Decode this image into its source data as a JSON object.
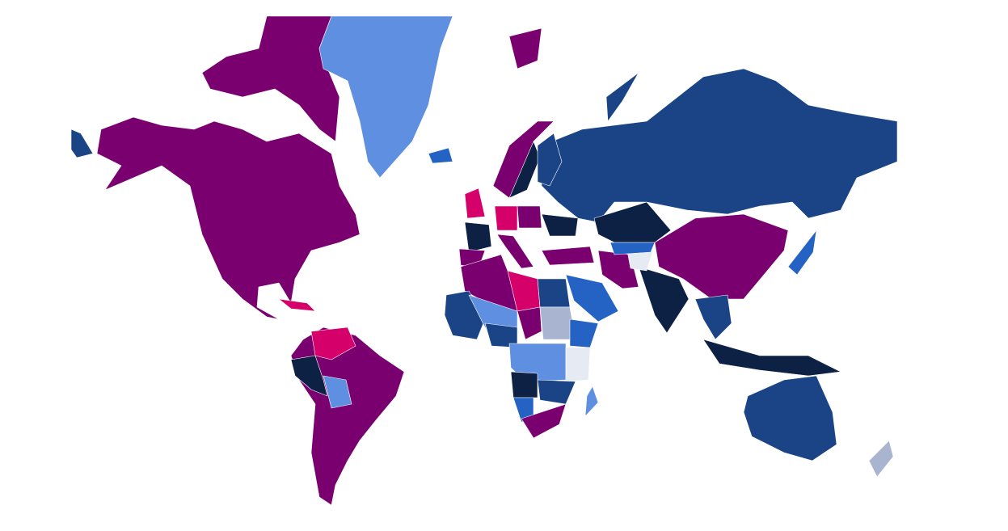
{
  "map": {
    "type": "choropleth-world",
    "palette": {
      "purple": "#7a0070",
      "magenta": "#d6006a",
      "navy": "#0d2145",
      "darkblue": "#1a4486",
      "blue": "#2462c4",
      "lightblue": "#5f8fe0",
      "greyblue": "#a9b5d0",
      "pale": "#e6ebf3"
    },
    "regions": [
      {
        "id": "north-america",
        "fill": "purple"
      },
      {
        "id": "arctic-islands",
        "fill": "purple"
      },
      {
        "id": "greenland",
        "fill": "lightblue"
      },
      {
        "id": "alaska-tip",
        "fill": "darkblue"
      },
      {
        "id": "iceland",
        "fill": "blue"
      },
      {
        "id": "south-america",
        "fill": "purple"
      },
      {
        "id": "venezuela",
        "fill": "magenta"
      },
      {
        "id": "peru",
        "fill": "navy"
      },
      {
        "id": "bolivia",
        "fill": "lightblue"
      },
      {
        "id": "cuba",
        "fill": "magenta"
      },
      {
        "id": "russia",
        "fill": "darkblue"
      },
      {
        "id": "novaya-zemlya",
        "fill": "darkblue"
      },
      {
        "id": "svalbard",
        "fill": "purple"
      },
      {
        "id": "scandinavia",
        "fill": "purple"
      },
      {
        "id": "sweden",
        "fill": "navy"
      },
      {
        "id": "finland",
        "fill": "darkblue"
      },
      {
        "id": "uk",
        "fill": "magenta"
      },
      {
        "id": "france",
        "fill": "navy"
      },
      {
        "id": "spain",
        "fill": "purple"
      },
      {
        "id": "germany",
        "fill": "magenta"
      },
      {
        "id": "poland",
        "fill": "purple"
      },
      {
        "id": "ukraine",
        "fill": "navy"
      },
      {
        "id": "italy",
        "fill": "purple"
      },
      {
        "id": "turkey",
        "fill": "purple"
      },
      {
        "id": "kazakhstan",
        "fill": "navy"
      },
      {
        "id": "china",
        "fill": "purple"
      },
      {
        "id": "india",
        "fill": "navy"
      },
      {
        "id": "iran",
        "fill": "purple"
      },
      {
        "id": "afghanistan",
        "fill": "pale"
      },
      {
        "id": "central-asia",
        "fill": "blue"
      },
      {
        "id": "saudi-arabia",
        "fill": "blue"
      },
      {
        "id": "japan",
        "fill": "blue"
      },
      {
        "id": "southeast-asia",
        "fill": "darkblue"
      },
      {
        "id": "indonesia",
        "fill": "navy"
      },
      {
        "id": "australia",
        "fill": "darkblue"
      },
      {
        "id": "new-zealand",
        "fill": "greyblue"
      },
      {
        "id": "algeria-morocco",
        "fill": "purple"
      },
      {
        "id": "libya",
        "fill": "magenta"
      },
      {
        "id": "egypt",
        "fill": "darkblue"
      },
      {
        "id": "west-africa",
        "fill": "darkblue"
      },
      {
        "id": "mali-niger",
        "fill": "lightblue"
      },
      {
        "id": "chad",
        "fill": "purple"
      },
      {
        "id": "sudan",
        "fill": "greyblue"
      },
      {
        "id": "nigeria",
        "fill": "darkblue"
      },
      {
        "id": "ethiopia",
        "fill": "blue"
      },
      {
        "id": "congo",
        "fill": "lightblue"
      },
      {
        "id": "kenya-tanzania",
        "fill": "pale"
      },
      {
        "id": "angola",
        "fill": "navy"
      },
      {
        "id": "namibia",
        "fill": "blue"
      },
      {
        "id": "zambia",
        "fill": "darkblue"
      },
      {
        "id": "south-africa",
        "fill": "purple"
      },
      {
        "id": "madagascar",
        "fill": "lightblue"
      }
    ]
  }
}
